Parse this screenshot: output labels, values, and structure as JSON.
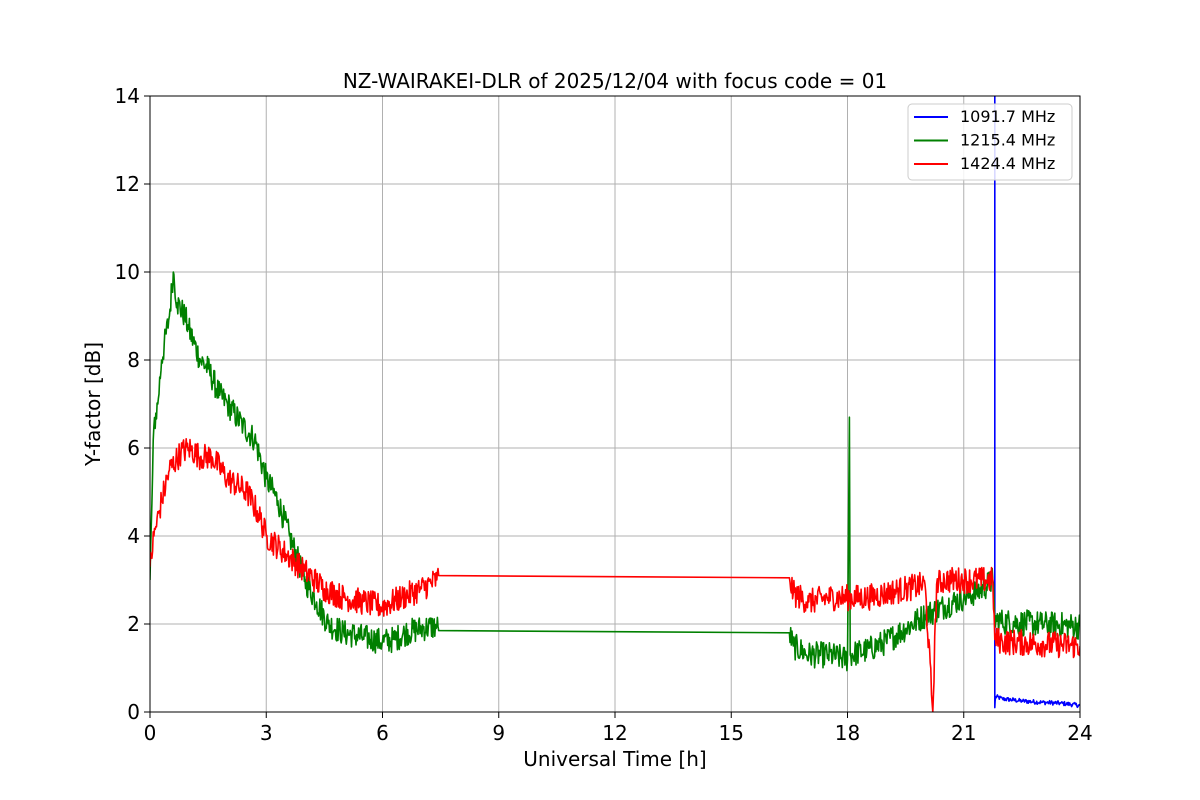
{
  "chart_data": {
    "type": "line",
    "title": "NZ-WAIRAKEI-DLR of 2025/12/04 with focus code = 01",
    "xlabel": "Universal Time [h]",
    "ylabel": "Y-factor [dB]",
    "xlim": [
      0,
      24
    ],
    "ylim": [
      0,
      14
    ],
    "xticks": [
      0,
      3,
      6,
      9,
      12,
      15,
      18,
      21,
      24
    ],
    "yticks": [
      0,
      2,
      4,
      6,
      8,
      10,
      12,
      14
    ],
    "grid": true,
    "legend_position": "top-right",
    "series": [
      {
        "name": "1091.7 MHz",
        "color": "#0000ff",
        "noise": 0.05,
        "points": [
          [
            21.8,
            14.0
          ],
          [
            21.8,
            0.1
          ],
          [
            21.82,
            0.35
          ],
          [
            22.0,
            0.3
          ],
          [
            22.5,
            0.25
          ],
          [
            23.0,
            0.22
          ],
          [
            23.5,
            0.2
          ],
          [
            24.0,
            0.15
          ]
        ]
      },
      {
        "name": "1215.4 MHz",
        "color": "#008000",
        "noise": 0.3,
        "points": [
          [
            0.0,
            3.0
          ],
          [
            0.1,
            6.5
          ],
          [
            0.2,
            7.0
          ],
          [
            0.3,
            8.0
          ],
          [
            0.5,
            9.0
          ],
          [
            0.6,
            10.0
          ],
          [
            0.7,
            9.3
          ],
          [
            0.9,
            9.0
          ],
          [
            1.0,
            8.7
          ],
          [
            1.3,
            8.0
          ],
          [
            1.5,
            7.8
          ],
          [
            1.8,
            7.2
          ],
          [
            2.0,
            7.0
          ],
          [
            2.4,
            6.5
          ],
          [
            2.7,
            6.2
          ],
          [
            3.0,
            5.3
          ],
          [
            3.3,
            4.8
          ],
          [
            3.6,
            4.0
          ],
          [
            4.0,
            3.0
          ],
          [
            4.3,
            2.5
          ],
          [
            4.6,
            2.0
          ],
          [
            5.0,
            1.8
          ],
          [
            5.5,
            1.7
          ],
          [
            6.0,
            1.6
          ],
          [
            6.3,
            1.65
          ],
          [
            6.6,
            1.8
          ],
          [
            7.0,
            1.9
          ],
          [
            7.4,
            1.95
          ],
          [
            7.45,
            1.85
          ],
          [
            16.5,
            1.8
          ],
          [
            16.6,
            1.5
          ],
          [
            17.0,
            1.3
          ],
          [
            17.5,
            1.3
          ],
          [
            18.0,
            1.2
          ],
          [
            18.05,
            6.7
          ],
          [
            18.07,
            1.3
          ],
          [
            18.5,
            1.4
          ],
          [
            19.0,
            1.6
          ],
          [
            19.5,
            1.9
          ],
          [
            20.0,
            2.2
          ],
          [
            20.5,
            2.4
          ],
          [
            21.0,
            2.6
          ],
          [
            21.5,
            2.8
          ],
          [
            21.75,
            3.0
          ],
          [
            21.8,
            2.1
          ],
          [
            22.0,
            2.05
          ],
          [
            23.0,
            2.0
          ],
          [
            24.0,
            1.95
          ]
        ]
      },
      {
        "name": "1424.4 MHz",
        "color": "#ff0000",
        "noise": 0.3,
        "points": [
          [
            0.0,
            3.3
          ],
          [
            0.1,
            4.0
          ],
          [
            0.3,
            4.8
          ],
          [
            0.5,
            5.5
          ],
          [
            0.8,
            5.9
          ],
          [
            1.0,
            6.0
          ],
          [
            1.3,
            5.8
          ],
          [
            1.6,
            5.8
          ],
          [
            2.0,
            5.3
          ],
          [
            2.5,
            5.0
          ],
          [
            2.8,
            4.5
          ],
          [
            3.0,
            4.0
          ],
          [
            3.5,
            3.6
          ],
          [
            4.0,
            3.2
          ],
          [
            4.5,
            2.8
          ],
          [
            5.0,
            2.6
          ],
          [
            5.5,
            2.5
          ],
          [
            6.0,
            2.4
          ],
          [
            6.5,
            2.6
          ],
          [
            7.0,
            2.8
          ],
          [
            7.4,
            3.0
          ],
          [
            7.45,
            3.1
          ],
          [
            16.5,
            3.05
          ],
          [
            16.6,
            2.7
          ],
          [
            17.0,
            2.5
          ],
          [
            17.5,
            2.6
          ],
          [
            18.0,
            2.6
          ],
          [
            18.5,
            2.6
          ],
          [
            19.0,
            2.7
          ],
          [
            19.5,
            2.8
          ],
          [
            20.0,
            2.9
          ],
          [
            20.2,
            0.0
          ],
          [
            20.3,
            2.9
          ],
          [
            20.5,
            3.0
          ],
          [
            21.0,
            3.0
          ],
          [
            21.5,
            3.0
          ],
          [
            21.75,
            3.0
          ],
          [
            21.8,
            1.65
          ],
          [
            22.0,
            1.6
          ],
          [
            23.0,
            1.55
          ],
          [
            24.0,
            1.5
          ]
        ]
      }
    ]
  }
}
